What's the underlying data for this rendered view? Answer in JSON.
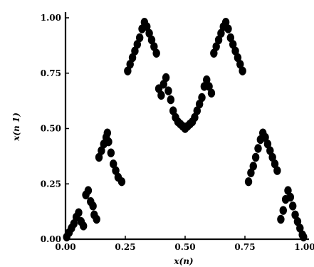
{
  "chart_data": {
    "type": "scatter",
    "title": "",
    "xlabel": "x(n)",
    "ylabel": "x(n 1)",
    "xlim": [
      0,
      1
    ],
    "ylim": [
      0,
      1
    ],
    "x_ticks": [
      "0.00",
      "0.25",
      "0.50",
      "0.75",
      "1.00"
    ],
    "y_ticks": [
      "0.00",
      "0.25",
      "0.50",
      "0.75",
      "1.00"
    ],
    "grid": false,
    "legend": "none",
    "marker_color": "#000000",
    "series": [
      {
        "points": [
          [
            0.005,
            0.01
          ],
          [
            0.015,
            0.03
          ],
          [
            0.025,
            0.05
          ],
          [
            0.035,
            0.07
          ],
          [
            0.045,
            0.1
          ],
          [
            0.055,
            0.12
          ],
          [
            0.065,
            0.08
          ],
          [
            0.075,
            0.06
          ],
          [
            0.085,
            0.2
          ],
          [
            0.095,
            0.22
          ],
          [
            0.105,
            0.17
          ],
          [
            0.115,
            0.15
          ],
          [
            0.12,
            0.11
          ],
          [
            0.13,
            0.09
          ],
          [
            0.14,
            0.37
          ],
          [
            0.15,
            0.4
          ],
          [
            0.16,
            0.43
          ],
          [
            0.17,
            0.46
          ],
          [
            0.175,
            0.48
          ],
          [
            0.18,
            0.44
          ],
          [
            0.19,
            0.39
          ],
          [
            0.2,
            0.34
          ],
          [
            0.21,
            0.31
          ],
          [
            0.22,
            0.28
          ],
          [
            0.235,
            0.26
          ],
          [
            0.26,
            0.76
          ],
          [
            0.27,
            0.79
          ],
          [
            0.28,
            0.82
          ],
          [
            0.29,
            0.85
          ],
          [
            0.3,
            0.88
          ],
          [
            0.31,
            0.91
          ],
          [
            0.32,
            0.95
          ],
          [
            0.33,
            0.98
          ],
          [
            0.34,
            0.96
          ],
          [
            0.35,
            0.93
          ],
          [
            0.36,
            0.9
          ],
          [
            0.37,
            0.87
          ],
          [
            0.38,
            0.84
          ],
          [
            0.39,
            0.68
          ],
          [
            0.4,
            0.65
          ],
          [
            0.41,
            0.7
          ],
          [
            0.42,
            0.73
          ],
          [
            0.43,
            0.67
          ],
          [
            0.44,
            0.63
          ],
          [
            0.45,
            0.58
          ],
          [
            0.46,
            0.55
          ],
          [
            0.47,
            0.53
          ],
          [
            0.48,
            0.52
          ],
          [
            0.49,
            0.51
          ],
          [
            0.5,
            0.5
          ],
          [
            0.51,
            0.51
          ],
          [
            0.52,
            0.52
          ],
          [
            0.53,
            0.53
          ],
          [
            0.54,
            0.55
          ],
          [
            0.55,
            0.58
          ],
          [
            0.56,
            0.61
          ],
          [
            0.57,
            0.64
          ],
          [
            0.58,
            0.69
          ],
          [
            0.59,
            0.72
          ],
          [
            0.6,
            0.69
          ],
          [
            0.61,
            0.66
          ],
          [
            0.62,
            0.84
          ],
          [
            0.63,
            0.87
          ],
          [
            0.64,
            0.9
          ],
          [
            0.65,
            0.93
          ],
          [
            0.66,
            0.96
          ],
          [
            0.67,
            0.98
          ],
          [
            0.68,
            0.95
          ],
          [
            0.69,
            0.91
          ],
          [
            0.7,
            0.88
          ],
          [
            0.71,
            0.85
          ],
          [
            0.72,
            0.82
          ],
          [
            0.73,
            0.79
          ],
          [
            0.74,
            0.76
          ],
          [
            0.765,
            0.26
          ],
          [
            0.775,
            0.3
          ],
          [
            0.785,
            0.33
          ],
          [
            0.795,
            0.37
          ],
          [
            0.805,
            0.41
          ],
          [
            0.815,
            0.45
          ],
          [
            0.825,
            0.48
          ],
          [
            0.835,
            0.46
          ],
          [
            0.845,
            0.43
          ],
          [
            0.855,
            0.4
          ],
          [
            0.865,
            0.37
          ],
          [
            0.875,
            0.34
          ],
          [
            0.885,
            0.31
          ],
          [
            0.9,
            0.09
          ],
          [
            0.91,
            0.13
          ],
          [
            0.92,
            0.18
          ],
          [
            0.93,
            0.22
          ],
          [
            0.94,
            0.19
          ],
          [
            0.95,
            0.15
          ],
          [
            0.96,
            0.11
          ],
          [
            0.97,
            0.08
          ],
          [
            0.98,
            0.05
          ],
          [
            0.99,
            0.02
          ],
          [
            0.995,
            0.01
          ]
        ]
      }
    ]
  }
}
